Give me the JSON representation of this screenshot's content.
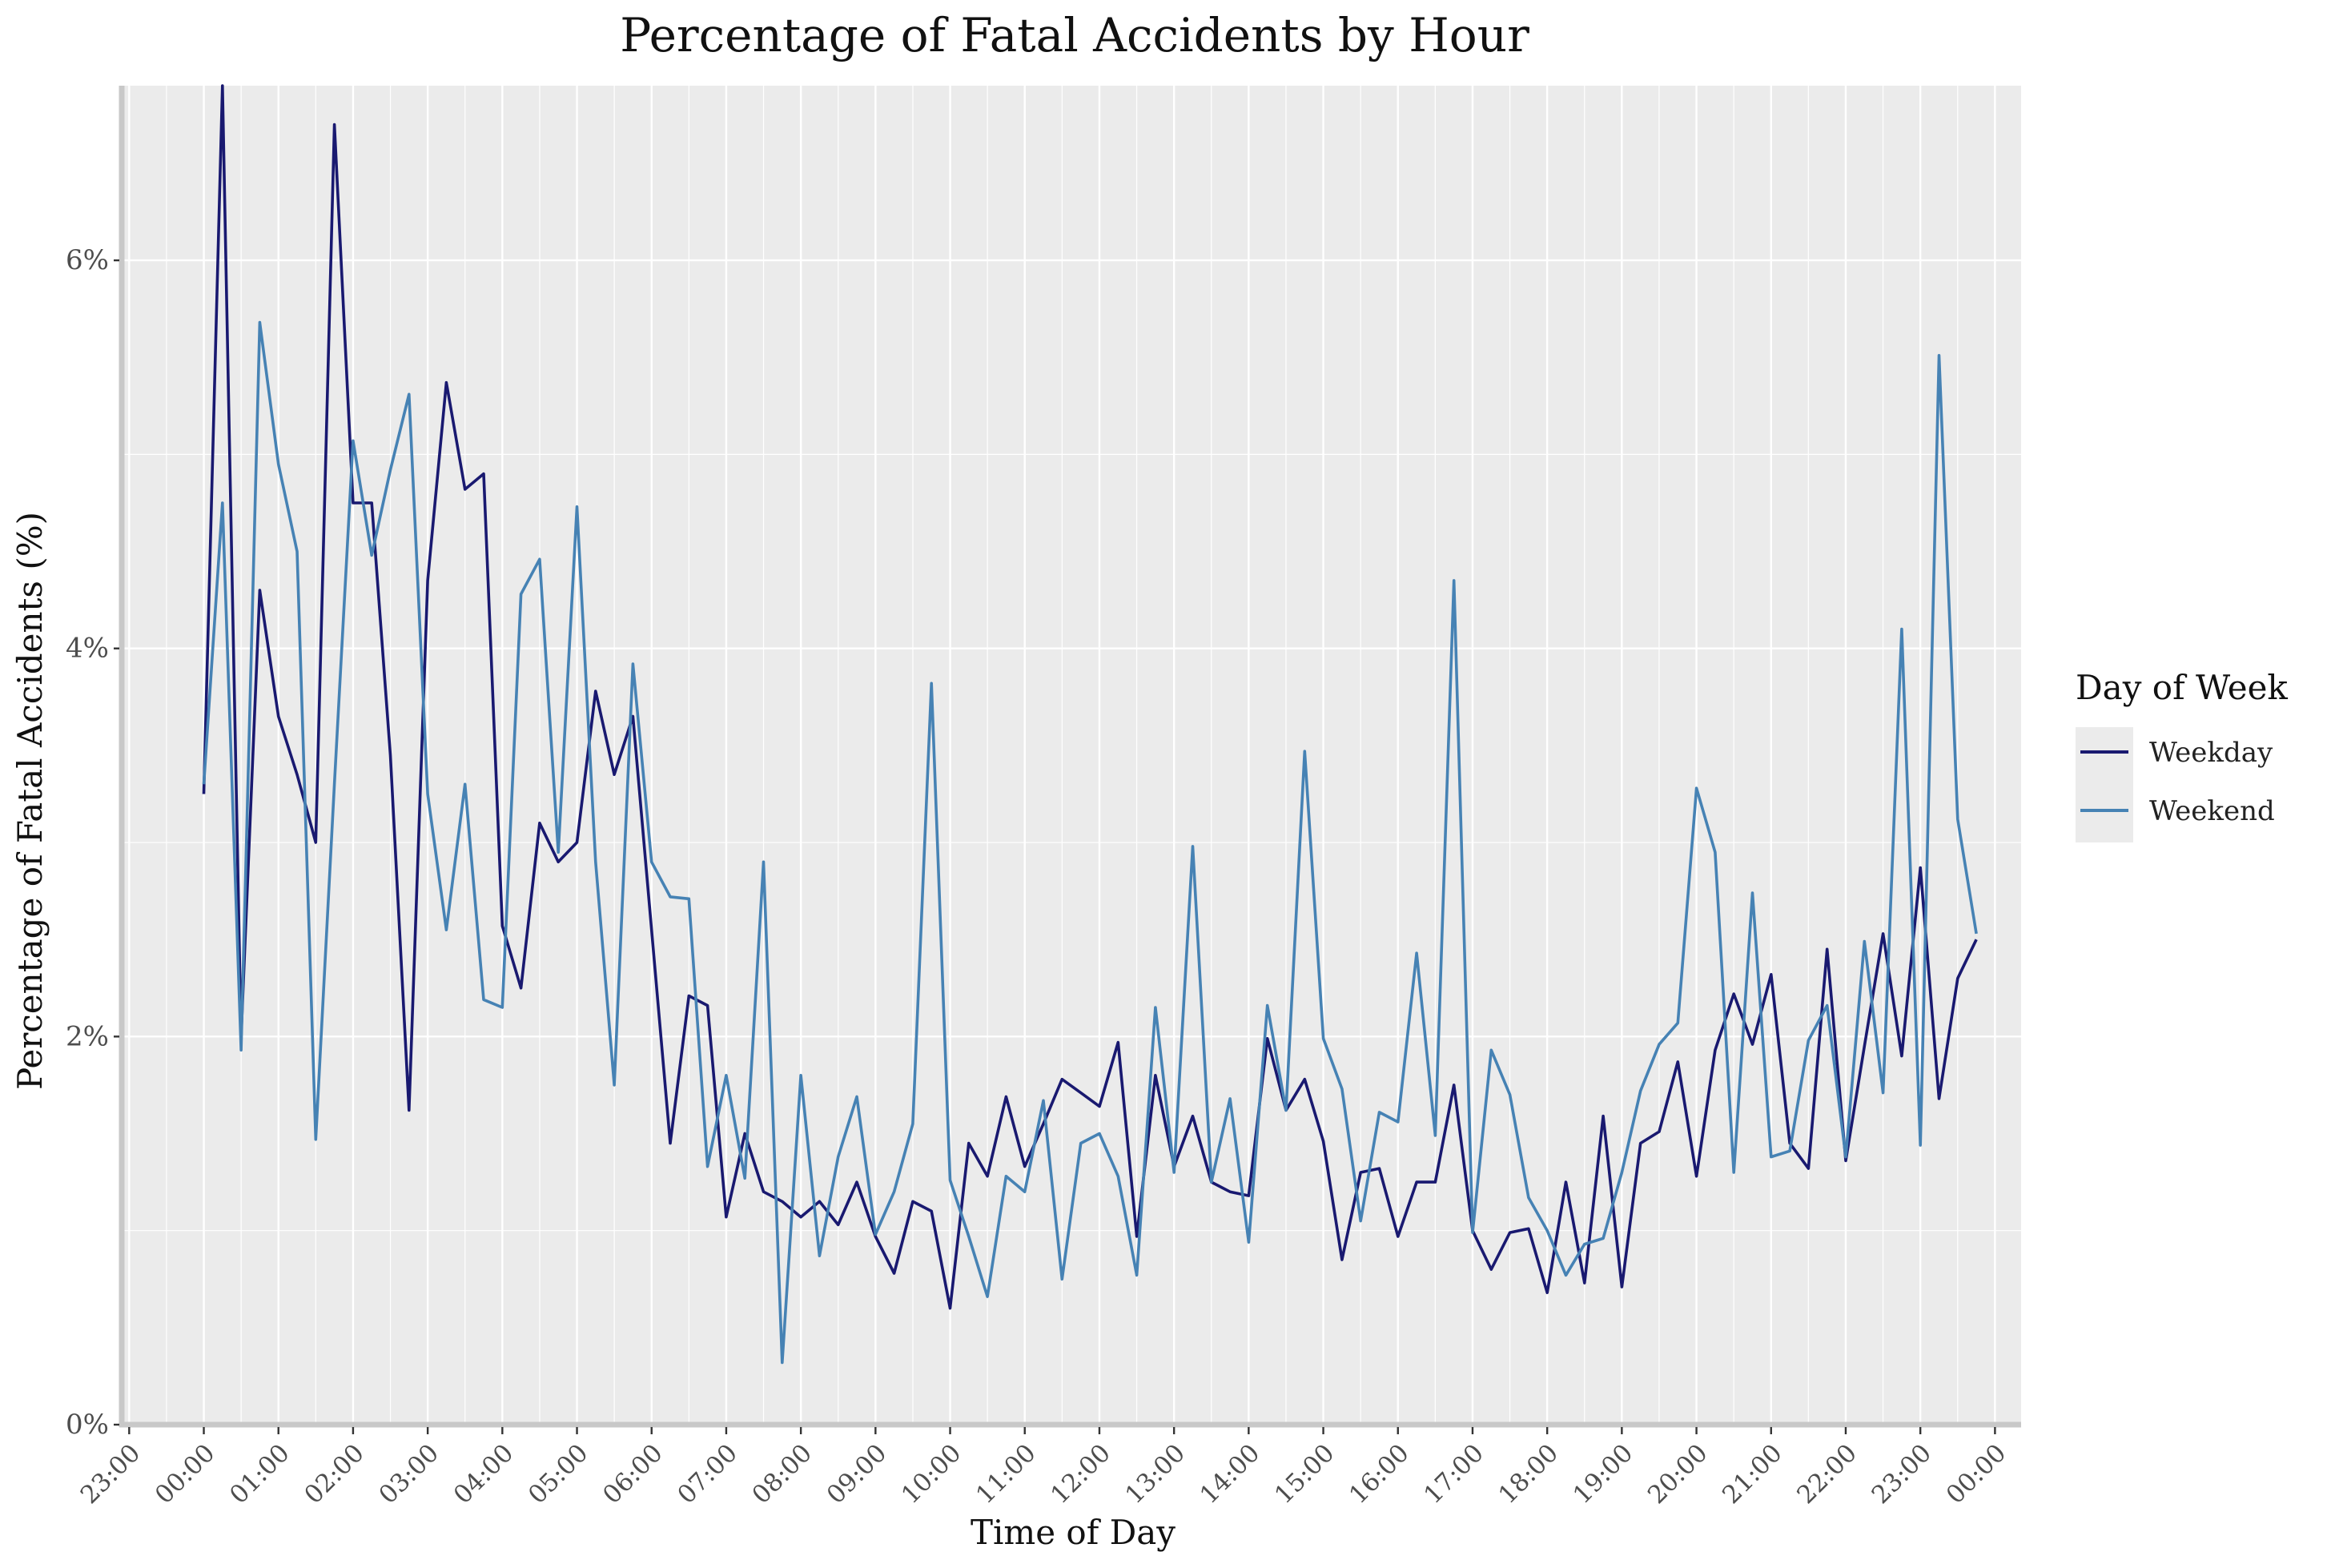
{
  "chart_data": {
    "type": "line",
    "title": "Percentage of Fatal Accidents by Hour",
    "xlabel": "Time of Day",
    "ylabel": "Percentage of Fatal Accidents (%)",
    "x_unit": "hours since midnight (15-minute bins)",
    "xlim": [
      -1.1,
      24.35
    ],
    "ylim": [
      0,
      6.9
    ],
    "y_ticks": [
      {
        "value": 0,
        "label": "0%"
      },
      {
        "value": 2,
        "label": "2%"
      },
      {
        "value": 4,
        "label": "4%"
      },
      {
        "value": 6,
        "label": "6%"
      }
    ],
    "x_ticks": [
      {
        "value": -1,
        "label": "23:00"
      },
      {
        "value": 0,
        "label": "00:00"
      },
      {
        "value": 1,
        "label": "01:00"
      },
      {
        "value": 2,
        "label": "02:00"
      },
      {
        "value": 3,
        "label": "03:00"
      },
      {
        "value": 4,
        "label": "04:00"
      },
      {
        "value": 5,
        "label": "05:00"
      },
      {
        "value": 6,
        "label": "06:00"
      },
      {
        "value": 7,
        "label": "07:00"
      },
      {
        "value": 8,
        "label": "08:00"
      },
      {
        "value": 9,
        "label": "09:00"
      },
      {
        "value": 10,
        "label": "10:00"
      },
      {
        "value": 11,
        "label": "11:00"
      },
      {
        "value": 12,
        "label": "12:00"
      },
      {
        "value": 13,
        "label": "13:00"
      },
      {
        "value": 14,
        "label": "14:00"
      },
      {
        "value": 15,
        "label": "15:00"
      },
      {
        "value": 16,
        "label": "16:00"
      },
      {
        "value": 17,
        "label": "17:00"
      },
      {
        "value": 18,
        "label": "18:00"
      },
      {
        "value": 19,
        "label": "19:00"
      },
      {
        "value": 20,
        "label": "20:00"
      },
      {
        "value": 21,
        "label": "21:00"
      },
      {
        "value": 22,
        "label": "22:00"
      },
      {
        "value": 23,
        "label": "23:00"
      },
      {
        "value": 24,
        "label": "00:00"
      }
    ],
    "grid": true,
    "legend": {
      "title": "Day of Week",
      "position": "right"
    },
    "series": [
      {
        "name": "Weekday",
        "color": "#191970",
        "points": [
          [
            0.0,
            3.25
          ],
          [
            0.25,
            6.9
          ],
          [
            0.5,
            2.0
          ],
          [
            0.75,
            4.3
          ],
          [
            1.0,
            3.65
          ],
          [
            1.25,
            3.35
          ],
          [
            1.5,
            3.0
          ],
          [
            1.75,
            6.7
          ],
          [
            2.0,
            4.75
          ],
          [
            2.25,
            4.75
          ],
          [
            2.5,
            3.45
          ],
          [
            2.75,
            1.62
          ],
          [
            3.0,
            4.35
          ],
          [
            3.25,
            5.37
          ],
          [
            3.5,
            4.82
          ],
          [
            3.75,
            4.9
          ],
          [
            4.0,
            2.57
          ],
          [
            4.25,
            2.25
          ],
          [
            4.5,
            3.1
          ],
          [
            4.75,
            2.9
          ],
          [
            5.0,
            3.0
          ],
          [
            5.25,
            3.78
          ],
          [
            5.5,
            3.35
          ],
          [
            5.75,
            3.65
          ],
          [
            6.0,
            2.55
          ],
          [
            6.25,
            1.45
          ],
          [
            6.5,
            2.21
          ],
          [
            6.75,
            2.16
          ],
          [
            7.0,
            1.07
          ],
          [
            7.25,
            1.5
          ],
          [
            7.5,
            1.2
          ],
          [
            7.75,
            1.15
          ],
          [
            8.0,
            1.07
          ],
          [
            8.25,
            1.15
          ],
          [
            8.5,
            1.03
          ],
          [
            8.75,
            1.25
          ],
          [
            9.0,
            0.97
          ],
          [
            9.25,
            0.78
          ],
          [
            9.5,
            1.15
          ],
          [
            9.75,
            1.1
          ],
          [
            10.0,
            0.6
          ],
          [
            10.25,
            1.45
          ],
          [
            10.5,
            1.28
          ],
          [
            10.75,
            1.69
          ],
          [
            11.0,
            1.33
          ],
          [
            11.25,
            1.55
          ],
          [
            11.5,
            1.78
          ],
          [
            11.75,
            1.71
          ],
          [
            12.0,
            1.64
          ],
          [
            12.25,
            1.97
          ],
          [
            12.5,
            0.97
          ],
          [
            12.75,
            1.8
          ],
          [
            13.0,
            1.33
          ],
          [
            13.25,
            1.59
          ],
          [
            13.5,
            1.25
          ],
          [
            13.75,
            1.2
          ],
          [
            14.0,
            1.18
          ],
          [
            14.25,
            1.99
          ],
          [
            14.5,
            1.62
          ],
          [
            14.75,
            1.78
          ],
          [
            15.0,
            1.46
          ],
          [
            15.25,
            0.85
          ],
          [
            15.5,
            1.3
          ],
          [
            15.75,
            1.32
          ],
          [
            16.0,
            0.97
          ],
          [
            16.25,
            1.25
          ],
          [
            16.5,
            1.25
          ],
          [
            16.75,
            1.75
          ],
          [
            17.0,
            1.0
          ],
          [
            17.25,
            0.8
          ],
          [
            17.5,
            0.99
          ],
          [
            17.75,
            1.01
          ],
          [
            18.0,
            0.68
          ],
          [
            18.25,
            1.25
          ],
          [
            18.5,
            0.73
          ],
          [
            18.75,
            1.59
          ],
          [
            19.0,
            0.71
          ],
          [
            19.25,
            1.45
          ],
          [
            19.5,
            1.51
          ],
          [
            19.75,
            1.87
          ],
          [
            20.0,
            1.28
          ],
          [
            20.25,
            1.93
          ],
          [
            20.5,
            2.22
          ],
          [
            20.75,
            1.96
          ],
          [
            21.0,
            2.32
          ],
          [
            21.25,
            1.45
          ],
          [
            21.5,
            1.32
          ],
          [
            21.75,
            2.45
          ],
          [
            22.0,
            1.36
          ],
          [
            22.25,
            1.95
          ],
          [
            22.5,
            2.53
          ],
          [
            22.75,
            1.9
          ],
          [
            23.0,
            2.87
          ],
          [
            23.25,
            1.68
          ],
          [
            23.5,
            2.3
          ],
          [
            23.75,
            2.5
          ]
        ]
      },
      {
        "name": "Weekend",
        "color": "#4682B4",
        "points": [
          [
            0.0,
            3.3
          ],
          [
            0.25,
            4.75
          ],
          [
            0.5,
            1.93
          ],
          [
            0.75,
            5.68
          ],
          [
            1.0,
            4.95
          ],
          [
            1.25,
            4.5
          ],
          [
            1.5,
            1.47
          ],
          [
            1.75,
            3.3
          ],
          [
            2.0,
            5.07
          ],
          [
            2.25,
            4.48
          ],
          [
            2.5,
            4.92
          ],
          [
            2.75,
            5.31
          ],
          [
            3.0,
            3.25
          ],
          [
            3.25,
            2.55
          ],
          [
            3.5,
            3.3
          ],
          [
            3.75,
            2.19
          ],
          [
            4.0,
            2.15
          ],
          [
            4.25,
            4.28
          ],
          [
            4.5,
            4.46
          ],
          [
            4.75,
            2.95
          ],
          [
            5.0,
            4.73
          ],
          [
            5.25,
            2.9
          ],
          [
            5.5,
            1.75
          ],
          [
            5.75,
            3.92
          ],
          [
            6.0,
            2.9
          ],
          [
            6.25,
            2.72
          ],
          [
            6.5,
            2.71
          ],
          [
            6.75,
            1.33
          ],
          [
            7.0,
            1.8
          ],
          [
            7.25,
            1.27
          ],
          [
            7.5,
            2.9
          ],
          [
            7.75,
            0.32
          ],
          [
            8.0,
            1.8
          ],
          [
            8.25,
            0.87
          ],
          [
            8.5,
            1.38
          ],
          [
            8.75,
            1.69
          ],
          [
            9.0,
            0.98
          ],
          [
            9.25,
            1.2
          ],
          [
            9.5,
            1.55
          ],
          [
            9.75,
            3.82
          ],
          [
            10.0,
            1.26
          ],
          [
            10.25,
            0.97
          ],
          [
            10.5,
            0.66
          ],
          [
            10.75,
            1.28
          ],
          [
            11.0,
            1.2
          ],
          [
            11.25,
            1.67
          ],
          [
            11.5,
            0.75
          ],
          [
            11.75,
            1.45
          ],
          [
            12.0,
            1.5
          ],
          [
            12.25,
            1.28
          ],
          [
            12.5,
            0.77
          ],
          [
            12.75,
            2.15
          ],
          [
            13.0,
            1.3
          ],
          [
            13.25,
            2.98
          ],
          [
            13.5,
            1.25
          ],
          [
            13.75,
            1.68
          ],
          [
            14.0,
            0.94
          ],
          [
            14.25,
            2.16
          ],
          [
            14.5,
            1.62
          ],
          [
            14.75,
            3.47
          ],
          [
            15.0,
            1.99
          ],
          [
            15.25,
            1.73
          ],
          [
            15.5,
            1.05
          ],
          [
            15.75,
            1.61
          ],
          [
            16.0,
            1.56
          ],
          [
            16.25,
            2.43
          ],
          [
            16.5,
            1.49
          ],
          [
            16.75,
            4.35
          ],
          [
            17.0,
            0.99
          ],
          [
            17.25,
            1.93
          ],
          [
            17.5,
            1.7
          ],
          [
            17.75,
            1.17
          ],
          [
            18.0,
            1.0
          ],
          [
            18.25,
            0.77
          ],
          [
            18.5,
            0.93
          ],
          [
            18.75,
            0.96
          ],
          [
            19.0,
            1.3
          ],
          [
            19.25,
            1.72
          ],
          [
            19.5,
            1.96
          ],
          [
            19.75,
            2.07
          ],
          [
            20.0,
            3.28
          ],
          [
            20.25,
            2.95
          ],
          [
            20.5,
            1.3
          ],
          [
            20.75,
            2.74
          ],
          [
            21.0,
            1.38
          ],
          [
            21.25,
            1.41
          ],
          [
            21.5,
            1.98
          ],
          [
            21.75,
            2.16
          ],
          [
            22.0,
            1.38
          ],
          [
            22.25,
            2.49
          ],
          [
            22.5,
            1.71
          ],
          [
            22.75,
            4.1
          ],
          [
            23.0,
            1.44
          ],
          [
            23.25,
            5.51
          ],
          [
            23.5,
            3.12
          ],
          [
            23.75,
            2.53
          ]
        ]
      }
    ]
  }
}
